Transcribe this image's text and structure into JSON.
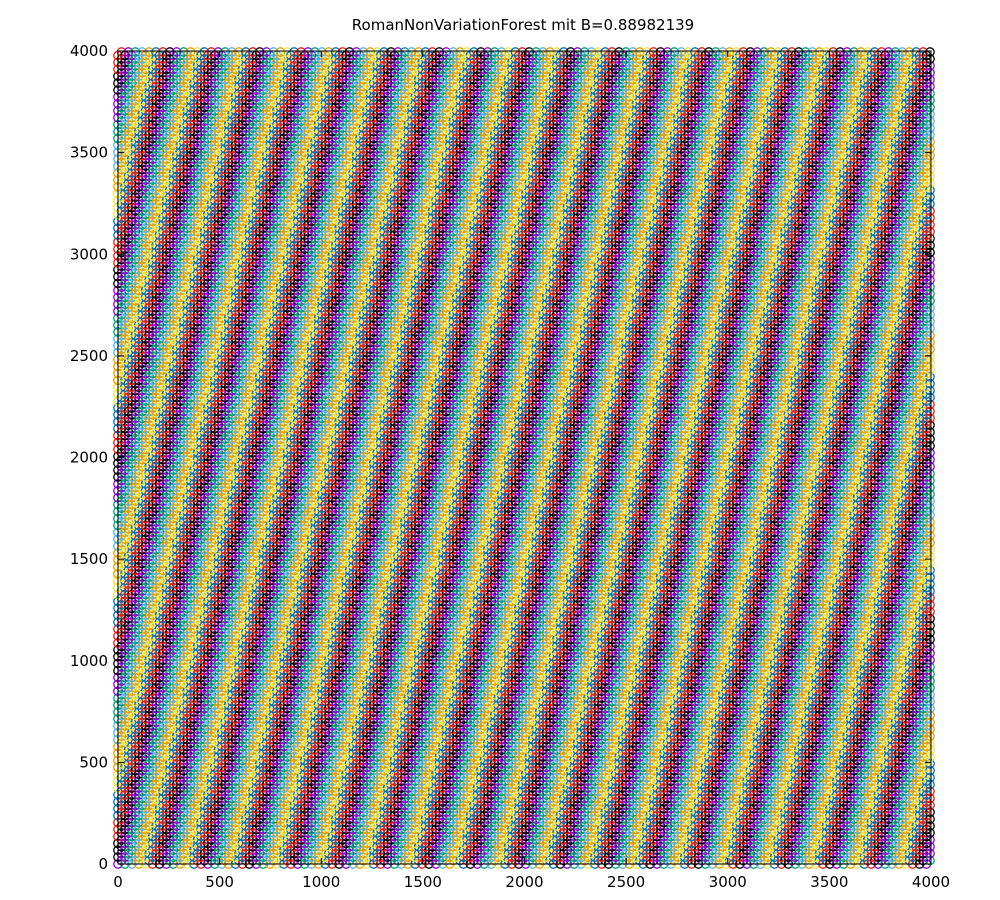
{
  "chart_data": {
    "type": "scatter",
    "title": "RomanNonVariationForest mit B=0.88982139",
    "xlabel": "",
    "ylabel": "",
    "xlim": [
      0,
      4000
    ],
    "ylim": [
      0,
      4000
    ],
    "x_ticks": [
      0,
      500,
      1000,
      1500,
      2000,
      2500,
      3000,
      3500,
      4000
    ],
    "y_ticks": [
      0,
      500,
      1000,
      1500,
      2000,
      2500,
      3000,
      3500,
      4000
    ],
    "x_tick_labels": [
      "0",
      "500",
      "1000",
      "1500",
      "2000",
      "2500",
      "3000",
      "3500",
      "4000"
    ],
    "y_tick_labels": [
      "0",
      "500",
      "1000",
      "1500",
      "2000",
      "2500",
      "3000",
      "3500",
      "4000"
    ],
    "grid": false,
    "legend": "none",
    "marker": "open-circle",
    "pattern": {
      "description": "open-circle markers arranged in diagonal stripes rising to the right, colored in a repeating cycle",
      "color_cycle": [
        "#9400d3",
        "#009e73",
        "#56b4e9",
        "#e69f00",
        "#f0e442",
        "#0072b2",
        "#e51e10",
        "#000000"
      ],
      "stripe_period_x": 220,
      "stripe_slope": 4.3,
      "point_spacing": 34
    }
  }
}
